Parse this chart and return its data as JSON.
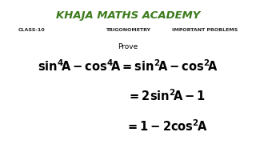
{
  "background_color": "#ffffff",
  "title": "KHAJA MATHS ACADEMY",
  "title_color": "#3a7a1a",
  "title_fontsize": 9.5,
  "subtitle_left": "CLASS-10",
  "subtitle_center": "TRIGONOMETRY",
  "subtitle_right": "IMPORTANT PROBLEMS",
  "subtitle_fontsize": 4.5,
  "subtitle_color": "#222222",
  "prove_text": "Prove",
  "prove_fontsize": 6.5,
  "math_fontsize": 10.5,
  "math_color": "#000000"
}
